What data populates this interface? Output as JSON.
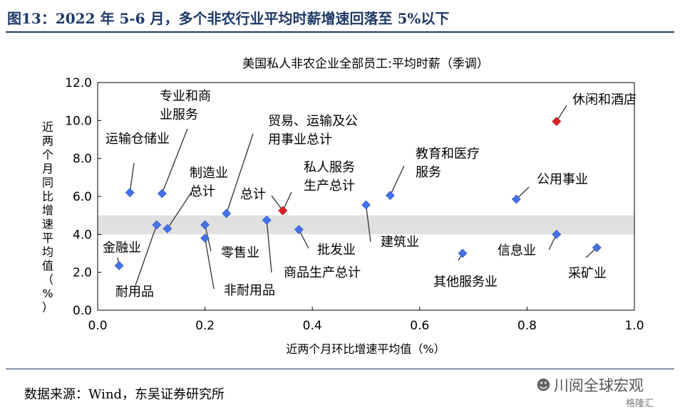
{
  "figure_title": "图13：2022 年 5-6 月，多个非农行业平均时薪增速回落至 5%以下",
  "source": "数据来源：Wind，东吴证券研究所",
  "watermark": "川阅全球宏观",
  "watermark_sub": "格隆汇",
  "colors": {
    "point": "#4472e8",
    "highlight": "#e02020",
    "band": "#e0e0e0",
    "title": "#1f3a68"
  },
  "chart_data": {
    "type": "scatter",
    "title": "美国私人非农企业全部员工:平均时薪（季调）",
    "xlabel": "近两个月环比增速平均值（%）",
    "ylabel": [
      "近",
      "两",
      "个",
      "月",
      "同",
      "比",
      "增",
      "速",
      "平",
      "均",
      "值",
      "（",
      "%",
      "）"
    ],
    "xlim": [
      0.0,
      1.0
    ],
    "ylim": [
      0.0,
      12.0
    ],
    "xticks": [
      "0.0",
      "0.2",
      "0.4",
      "0.6",
      "0.8",
      "1.0"
    ],
    "yticks": [
      "0.0",
      "2.0",
      "4.0",
      "6.0",
      "8.0",
      "10.0",
      "12.0"
    ],
    "band": [
      4.0,
      5.0
    ],
    "points": [
      {
        "label": [
          "运输仓储业"
        ],
        "x": 0.06,
        "y": 6.2,
        "highlight": false
      },
      {
        "label": [
          "专业和商",
          "业服务"
        ],
        "x": 0.12,
        "y": 6.15,
        "highlight": false
      },
      {
        "label": [
          "贸易、运输及公",
          "用事业总计"
        ],
        "x": 0.24,
        "y": 5.1,
        "highlight": false
      },
      {
        "label": [
          "制造业",
          "总计"
        ],
        "x": 0.13,
        "y": 4.3,
        "highlight": false
      },
      {
        "label": [
          "私人服务",
          "生产总计"
        ],
        "x": 0.345,
        "y": 5.25,
        "highlight": true
      },
      {
        "label": [
          "总计"
        ],
        "x": 0.345,
        "y": 5.25,
        "highlight": false
      },
      {
        "label": [
          "教育和医疗",
          "服务"
        ],
        "x": 0.545,
        "y": 6.05,
        "highlight": false
      },
      {
        "label": [
          "休闲和酒店"
        ],
        "x": 0.855,
        "y": 9.95,
        "highlight": true
      },
      {
        "label": [
          "公用事业"
        ],
        "x": 0.78,
        "y": 5.85,
        "highlight": false
      },
      {
        "label": [
          "金融业"
        ],
        "x": 0.04,
        "y": 2.35,
        "highlight": false
      },
      {
        "label": [
          "耐用品"
        ],
        "x": 0.11,
        "y": 4.5,
        "highlight": false
      },
      {
        "label": [
          "零售业"
        ],
        "x": 0.2,
        "y": 4.5,
        "highlight": false
      },
      {
        "label": [
          "非耐用品"
        ],
        "x": 0.2,
        "y": 3.8,
        "highlight": false
      },
      {
        "label": [
          "商品生产总计"
        ],
        "x": 0.315,
        "y": 4.75,
        "highlight": false
      },
      {
        "label": [
          "批发业"
        ],
        "x": 0.375,
        "y": 4.25,
        "highlight": false
      },
      {
        "label": [
          "建筑业"
        ],
        "x": 0.5,
        "y": 5.55,
        "highlight": false
      },
      {
        "label": [
          "其他服务业"
        ],
        "x": 0.68,
        "y": 3.0,
        "highlight": false
      },
      {
        "label": [
          "信息业"
        ],
        "x": 0.855,
        "y": 4.0,
        "highlight": false
      },
      {
        "label": [
          "采矿业"
        ],
        "x": 0.93,
        "y": 3.3,
        "highlight": false
      }
    ]
  }
}
